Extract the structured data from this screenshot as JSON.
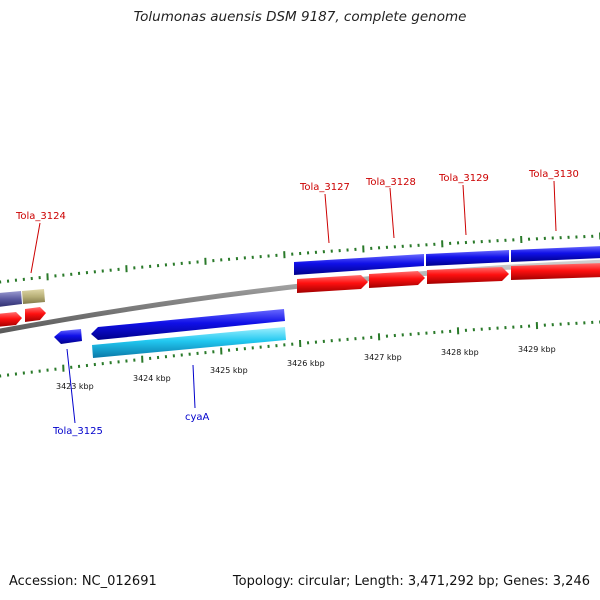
{
  "title": "Tolumonas auensis DSM 9187, complete genome",
  "footer": {
    "accession": "Accession: NC_012691",
    "summary": "Topology: circular; Length: 3,471,292 bp; Genes: 3,246"
  },
  "coordinate_labels": [
    "3423 kbp",
    "3424 kbp",
    "3425 kbp",
    "3426 kbp",
    "3427 kbp",
    "3428 kbp",
    "3429 kbp"
  ],
  "gene_labels": {
    "top": [
      "Tola_3124",
      "Tola_3127",
      "Tola_3128",
      "Tola_3129",
      "Tola_3130"
    ],
    "bottom": [
      "Tola_3125",
      "cyaA"
    ]
  },
  "colors": {
    "forward_gene": "#1010e0",
    "forward_cds": "#ff1010",
    "reverse_gene": "#1010d0",
    "reverse_cds": "#22c8f0",
    "label_top": "#cc0000",
    "label_bottom": "#0000cc",
    "tick": "#2a7a2a",
    "backbone": "#8a8a8a",
    "gene_purple": "#5a5aa0",
    "gene_khaki": "#b8b078"
  }
}
